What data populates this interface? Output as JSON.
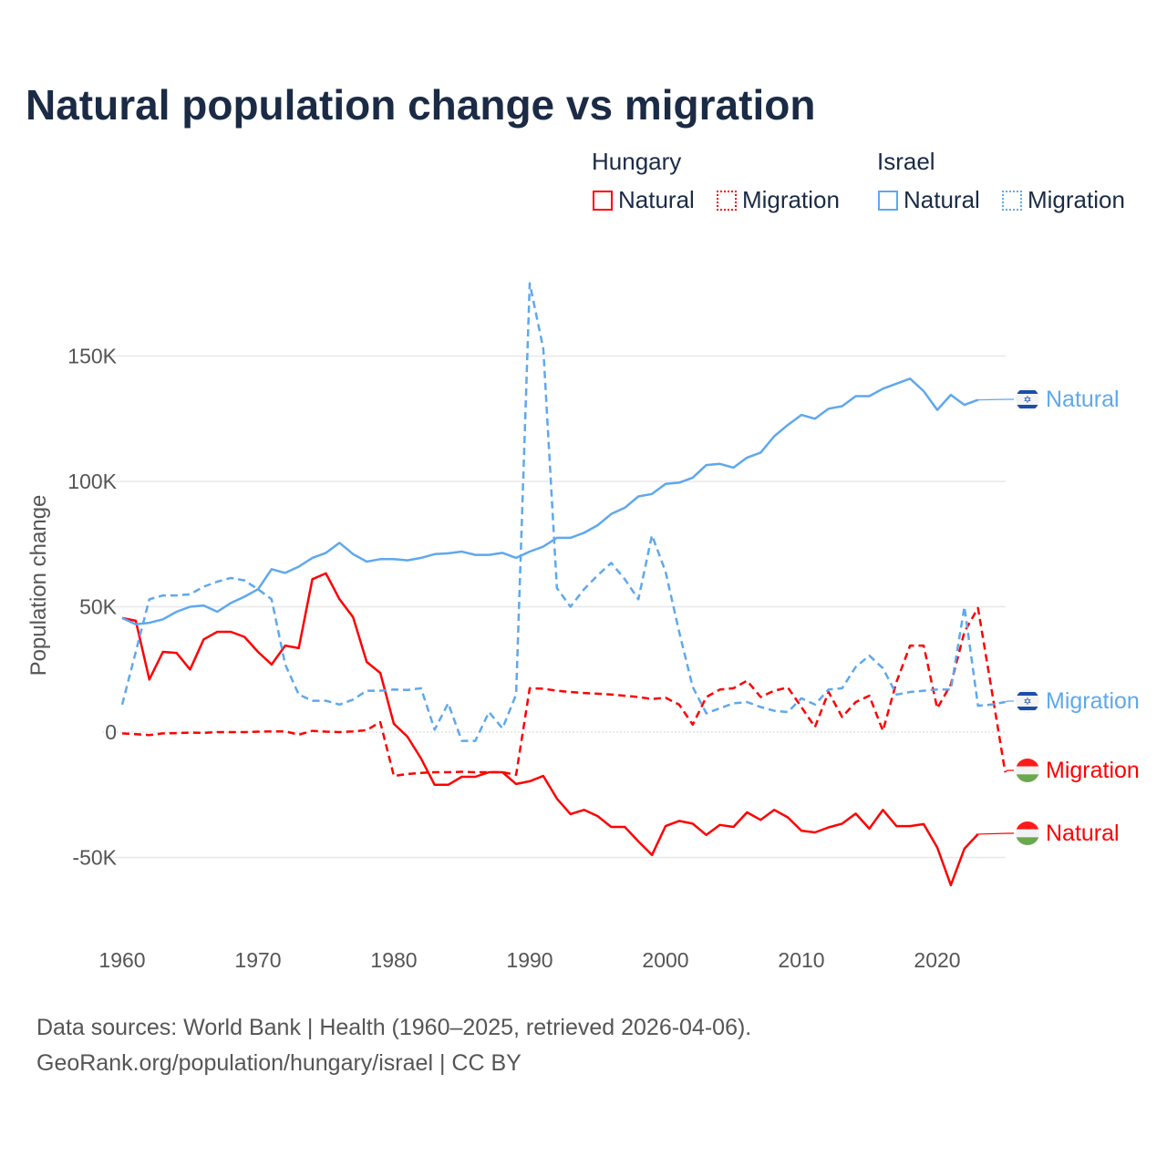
{
  "title": "Natural population change vs migration",
  "legend": {
    "groups": [
      {
        "name": "Hungary",
        "items": [
          "Natural",
          "Migration"
        ],
        "color": "#ff0000"
      },
      {
        "name": "Israel",
        "items": [
          "Natural",
          "Migration"
        ],
        "color": "#5ea8ee"
      }
    ]
  },
  "source": {
    "line1": "Data sources: World Bank | Health (1960–2025, retrieved 2026-04-06).",
    "line2": "GeoRank.org/population/hungary/israel | CC BY"
  },
  "chart_data": {
    "type": "line",
    "title": "Natural population change vs migration",
    "xlabel": "",
    "ylabel": "Population change",
    "xlim": [
      1960,
      2025
    ],
    "ylim": [
      -70000,
      190000
    ],
    "xticks": [
      {
        "v": 1960,
        "label": "1960"
      },
      {
        "v": 1970,
        "label": "1970"
      },
      {
        "v": 1980,
        "label": "1980"
      },
      {
        "v": 1990,
        "label": "1990"
      },
      {
        "v": 2000,
        "label": "2000"
      },
      {
        "v": 2010,
        "label": "2010"
      },
      {
        "v": 2020,
        "label": "2020"
      }
    ],
    "yticks": [
      {
        "v": -50000,
        "label": "-50K"
      },
      {
        "v": 0,
        "label": "0"
      },
      {
        "v": 50000,
        "label": "50K"
      },
      {
        "v": 100000,
        "label": "100K"
      },
      {
        "v": 150000,
        "label": "150K"
      }
    ],
    "grid": true,
    "series": [
      {
        "name": "Hungary Natural",
        "label": "Natural",
        "country": "Hungary",
        "color": "#ff0000",
        "dash": false,
        "start": 1960,
        "values": [
          45.5,
          44.4,
          21,
          32,
          31.6,
          25,
          37,
          40,
          40,
          38,
          32,
          27,
          34.5,
          33.5,
          61,
          63.3,
          53,
          45.8,
          28,
          23.6,
          3.3,
          -1.8,
          -10.5,
          -21,
          -21,
          -17.8,
          -17.8,
          -16,
          -16,
          -20.7,
          -19.6,
          -17.5,
          -26.5,
          -32.7,
          -31,
          -33.5,
          -37.8,
          -37.8,
          -43.6,
          -49,
          -37.5,
          -35.4,
          -36.5,
          -41,
          -37,
          -37.8,
          -32,
          -35,
          -31,
          -34,
          -39.3,
          -40,
          -38,
          -36.5,
          -32.5,
          -38.5,
          -31,
          -37.5,
          -37.5,
          -36.7,
          -46,
          -61,
          -46.5,
          -40.7
        ],
        "unit_multiplier": 1000
      },
      {
        "name": "Hungary Migration",
        "label": "Migration",
        "country": "Hungary",
        "color": "#ff0000",
        "dash": true,
        "start": 1960,
        "values": [
          -0.5,
          -0.8,
          -1.2,
          -0.5,
          -0.4,
          -0.2,
          -0.3,
          0,
          0,
          0,
          0.2,
          0.3,
          0.3,
          -1,
          0.5,
          0.2,
          0,
          0.3,
          0.8,
          4,
          -17.5,
          -16.7,
          -16.3,
          -16,
          -16,
          -15.8,
          -16,
          -16,
          -16,
          -17,
          17.5,
          17.3,
          16.5,
          16,
          15.6,
          15.3,
          15,
          14.5,
          14,
          13.2,
          13.7,
          11,
          3,
          14,
          17,
          17.5,
          20.5,
          14,
          16.5,
          17.8,
          10,
          2,
          16,
          6,
          12,
          14.5,
          0.5,
          20,
          34.5,
          34.5,
          9.5,
          19,
          40,
          49.5,
          17,
          -16
        ],
        "unit_multiplier": 1000
      },
      {
        "name": "Israel Natural",
        "label": "Natural",
        "country": "Israel",
        "color": "#5ea8ee",
        "dash": false,
        "start": 1960,
        "values": [
          45.5,
          43,
          43.6,
          45,
          48,
          50,
          50.5,
          48,
          51.5,
          54,
          57,
          65,
          63.5,
          66,
          69.5,
          71.5,
          75.5,
          71,
          68,
          69,
          69,
          68.5,
          69.5,
          71,
          71.3,
          72,
          70.7,
          70.7,
          71.5,
          69.5,
          72,
          74,
          77.5,
          77.5,
          79.5,
          82.5,
          87,
          89.5,
          94,
          95,
          99,
          99.5,
          101.5,
          106.5,
          107,
          105.5,
          109.5,
          111.5,
          118,
          122.5,
          126.5,
          125,
          129,
          130,
          134,
          134,
          137,
          139,
          141,
          136,
          128.5,
          134.5,
          130.5,
          132.5
        ],
        "unit_multiplier": 1000
      },
      {
        "name": "Israel Migration",
        "label": "Migration",
        "country": "Israel",
        "color": "#5ea8ee",
        "dash": true,
        "start": 1960,
        "values": [
          11,
          32,
          53,
          54.5,
          54.5,
          55,
          58,
          60,
          61.5,
          60.5,
          57,
          53,
          27,
          15,
          12.5,
          12.5,
          11,
          13,
          16.5,
          16.5,
          17,
          16.8,
          17.5,
          1,
          11.5,
          -3.5,
          -3.5,
          8,
          1.5,
          15,
          179,
          153,
          57.5,
          50,
          57,
          62.5,
          67.5,
          61,
          53,
          78.5,
          64,
          40,
          18,
          7.5,
          9.5,
          11.5,
          12,
          10,
          8.5,
          8,
          13.5,
          11,
          17,
          17.5,
          26,
          30.5,
          25.5,
          15,
          16,
          16.5,
          17,
          17,
          50,
          10.5,
          11,
          12
        ],
        "unit_multiplier": 1000
      }
    ]
  }
}
